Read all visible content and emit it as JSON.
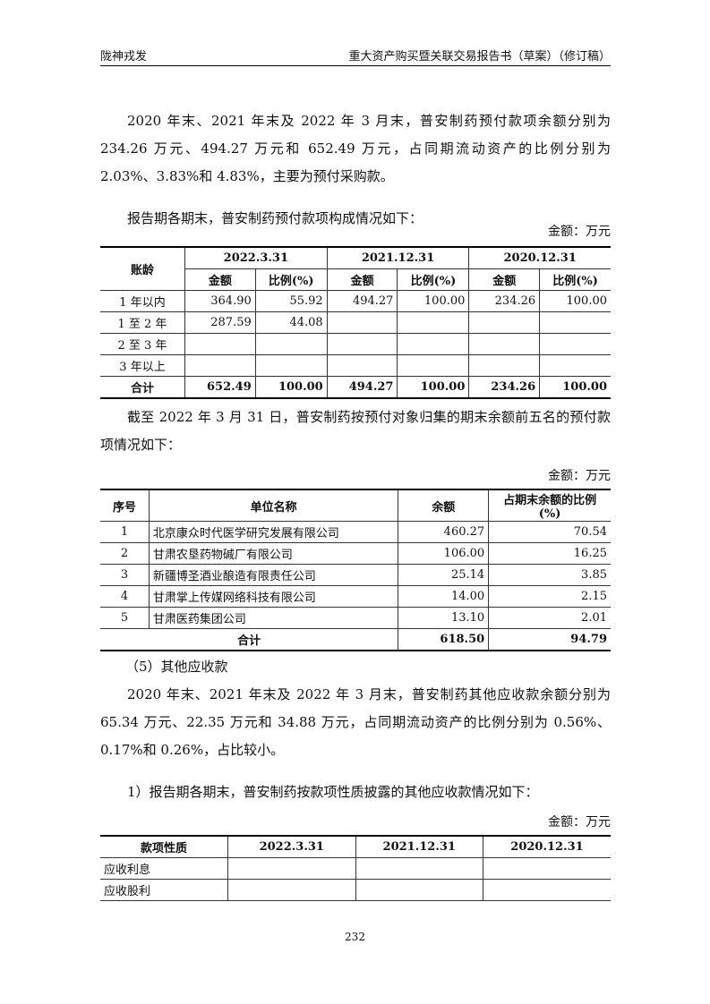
{
  "header": {
    "left": "陇神戎发",
    "right": "重大资产购买暨关联交易报告书（草案）（修订稿）"
  },
  "para1": "2020 年末、2021 年末及 2022 年 3 月末，普安制药预付款项余额分别为 234.26 万元、494.27 万元和 652.49 万元，占同期流动资产的比例分别为 2.03%、3.83%和 4.83%，主要为预付采购款。",
  "para2": "报告期各期末，普安制药预付款项构成情况如下：",
  "unit": "金额：万元",
  "table1": {
    "age_header": "账龄",
    "periods": [
      "2022.3.31",
      "2021.12.31",
      "2020.12.31"
    ],
    "sub": [
      "金额",
      "比例(%)"
    ],
    "rows": [
      [
        "1 年以内",
        "364.90",
        "55.92",
        "494.27",
        "100.00",
        "234.26",
        "100.00"
      ],
      [
        "1 至 2 年",
        "287.59",
        "44.08",
        "",
        "",
        "",
        ""
      ],
      [
        "2 至 3 年",
        "",
        "",
        "",
        "",
        "",
        ""
      ],
      [
        "3 年以上",
        "",
        "",
        "",
        "",
        "",
        ""
      ]
    ],
    "total": [
      "合计",
      "652.49",
      "100.00",
      "494.27",
      "100.00",
      "234.26",
      "100.00"
    ]
  },
  "para3": "截至 2022 年 3 月 31 日，普安制药按预付对象归集的期末余额前五名的预付款项情况如下：",
  "table2": {
    "headers": [
      "序号",
      "单位名称",
      "余额",
      "占期末余额的比例(%)"
    ],
    "rows": [
      [
        "1",
        "北京康众时代医学研究发展有限公司",
        "460.27",
        "70.54"
      ],
      [
        "2",
        "甘肃农垦药物碱厂有限公司",
        "106.00",
        "16.25"
      ],
      [
        "3",
        "新疆博圣酒业酿造有限责任公司",
        "25.14",
        "3.85"
      ],
      [
        "4",
        "甘肃掌上传媒网络科技有限公司",
        "14.00",
        "2.15"
      ],
      [
        "5",
        "甘肃医药集团公司",
        "13.10",
        "2.01"
      ]
    ],
    "total": [
      "合计",
      "618.50",
      "94.79"
    ]
  },
  "section": "（5）其他应收款",
  "para4": "2020 年末、2021 年末及 2022 年 3 月末，普安制药其他应收款余额分别为 65.34 万元、22.35 万元和 34.88 万元，占同期流动资产的比例分别为 0.56%、0.17%和 0.26%，占比较小。",
  "para5": "1）报告期各期末，普安制药按款项性质披露的其他应收款情况如下：",
  "table3": {
    "headers": [
      "款项性质",
      "2022.3.31",
      "2021.12.31",
      "2020.12.31"
    ],
    "rows": [
      [
        "应收利息",
        "",
        "",
        ""
      ],
      [
        "应收股利",
        "",
        "",
        ""
      ]
    ]
  },
  "page_number": "232"
}
